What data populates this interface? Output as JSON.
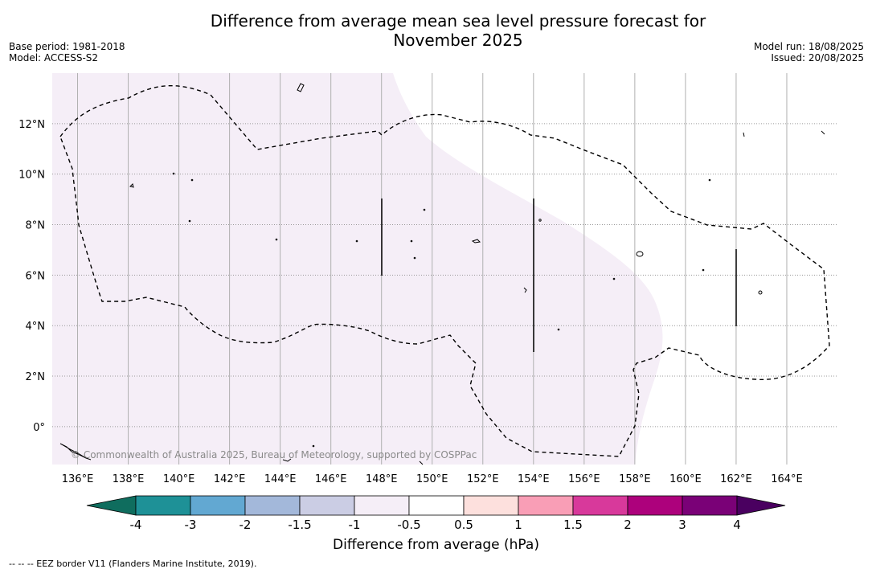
{
  "title_line1": "Difference from average mean sea level pressure forecast for",
  "title_line2": "November 2025",
  "meta_left": [
    "Base period: 1981-2018",
    "Model: ACCESS-S2"
  ],
  "meta_right": [
    "Model run: 18/08/2025",
    "Issued: 20/08/2025"
  ],
  "map": {
    "lon_range": [
      135,
      166
    ],
    "lat_range": [
      -1.5,
      14
    ],
    "lat_ticks": [
      {
        "value": 12,
        "label": "12°N"
      },
      {
        "value": 10,
        "label": "10°N"
      },
      {
        "value": 8,
        "label": "8°N"
      },
      {
        "value": 6,
        "label": "6°N"
      },
      {
        "value": 4,
        "label": "4°N"
      },
      {
        "value": 2,
        "label": "2°N"
      },
      {
        "value": 0,
        "label": "0°"
      }
    ],
    "lon_ticks": [
      {
        "value": 136,
        "label": "136°E"
      },
      {
        "value": 138,
        "label": "138°E"
      },
      {
        "value": 140,
        "label": "140°E"
      },
      {
        "value": 142,
        "label": "142°E"
      },
      {
        "value": 144,
        "label": "144°E"
      },
      {
        "value": 146,
        "label": "146°E"
      },
      {
        "value": 148,
        "label": "148°E"
      },
      {
        "value": 150,
        "label": "150°E"
      },
      {
        "value": 152,
        "label": "152°E"
      },
      {
        "value": 154,
        "label": "154°E"
      },
      {
        "value": 156,
        "label": "156°E"
      },
      {
        "value": 158,
        "label": "158°E"
      },
      {
        "value": 160,
        "label": "160°E"
      },
      {
        "value": 162,
        "label": "162°E"
      },
      {
        "value": 164,
        "label": "164°E"
      }
    ],
    "anomaly_region_color": "#f5eef7",
    "copyright": "© Commonwealth of Australia 2025, Bureau of Meteorology, supported by COSPPac"
  },
  "colorbar": {
    "ticks": [
      "-4",
      "-3",
      "-2",
      "-1.5",
      "-1",
      "-0.5",
      "0.5",
      "1",
      "1.5",
      "2",
      "3",
      "4"
    ],
    "colors": [
      "#1e9197",
      "#62a8d2",
      "#a3b8da",
      "#cbcde4",
      "#f5eef7",
      "#ffffff",
      "#fde0dd",
      "#f99eb6",
      "#d8399b",
      "#ad017c",
      "#7a0177"
    ],
    "low_extend_color": "#0f6d5e",
    "high_extend_color": "#4a0060",
    "label": "Difference from average (hPa)"
  },
  "footer": "-- -- -- EEZ border V11 (Flanders Marine Institute, 2019)."
}
